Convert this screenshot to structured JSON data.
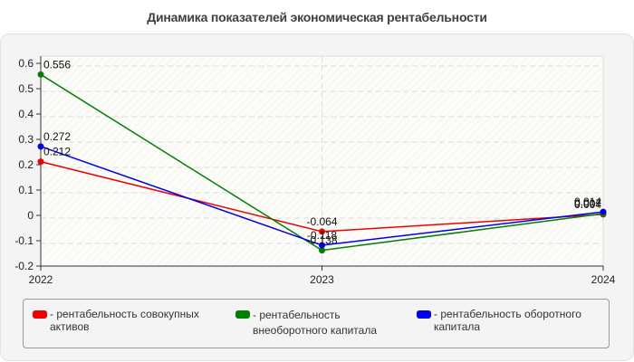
{
  "chart_data": {
    "type": "line",
    "title": "Динамика показателей экономическая рентабельности",
    "xlabel": "",
    "ylabel": "",
    "categories": [
      "2022",
      "2023",
      "2024"
    ],
    "ylim": [
      -0.2,
      0.6
    ],
    "yticks": [
      "0.6",
      "0.5",
      "0.4",
      "0.3",
      "0.2",
      "0.1",
      "0",
      "-0.1",
      "-0.2"
    ],
    "grid": true,
    "legend_position": "bottom",
    "series": [
      {
        "name": "рентабельность совокупных активов",
        "color": "#ee0000",
        "values": [
          0.212,
          -0.064,
          0.004
        ],
        "labels": [
          "0.212",
          "-0.064",
          "0.004"
        ]
      },
      {
        "name": "рентабельность внеоборотного капитала",
        "color": "#008000",
        "values": [
          0.556,
          -0.138,
          0.007
        ],
        "labels": [
          "0.556",
          "-0.138",
          "0.007"
        ]
      },
      {
        "name": "рентабельность оборотного капитала",
        "color": "#0000ee",
        "values": [
          0.272,
          -0.118,
          0.014
        ],
        "labels": [
          "0.272",
          "-0.118",
          "0.014"
        ]
      }
    ]
  },
  "legend": {
    "items": [
      {
        "text": "- рентабельность совокупных\nактивов"
      },
      {
        "text": "- рентабельность\nвнеоборотного капитала"
      },
      {
        "text": "- рентабельность оборотного\nкапитала"
      }
    ]
  }
}
